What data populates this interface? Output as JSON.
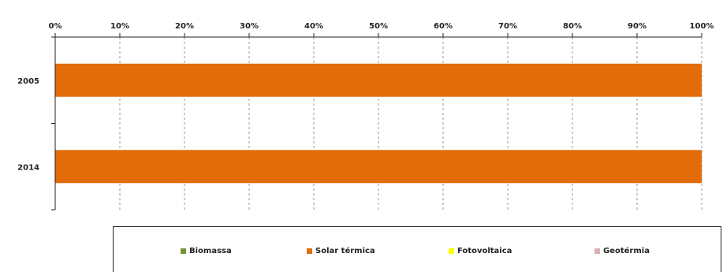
{
  "chart_data": {
    "type": "bar",
    "orientation": "horizontal",
    "stacked": "100%",
    "categories": [
      "2005",
      "2014"
    ],
    "x_ticks": [
      "0%",
      "10%",
      "20%",
      "30%",
      "40%",
      "50%",
      "60%",
      "70%",
      "80%",
      "90%",
      "100%"
    ],
    "xlim": [
      0,
      100
    ],
    "grid": "vertical dashed",
    "legend_position": "bottom",
    "series": [
      {
        "name": "Biomassa",
        "color": "#77933c",
        "values": [
          0,
          0
        ]
      },
      {
        "name": "Solar térmica",
        "color": "#e36c0a",
        "values": [
          100,
          100
        ]
      },
      {
        "name": "Fotovoltaica",
        "color": "#ffff00",
        "values": [
          0,
          0
        ]
      },
      {
        "name": "Geotérmia",
        "color": "#d9b3b3",
        "values": [
          0,
          0
        ]
      }
    ]
  }
}
